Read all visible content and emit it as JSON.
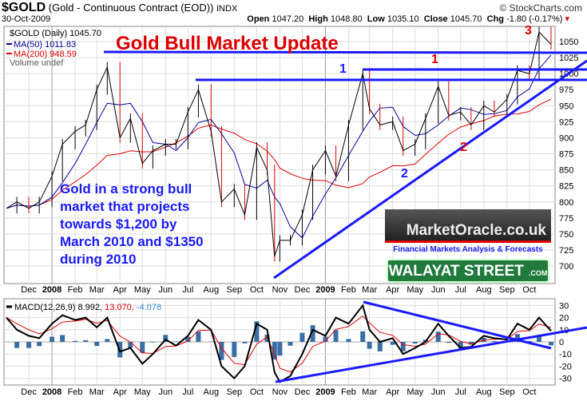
{
  "header": {
    "symbol": "$GOLD",
    "name": "(Gold - Continuous Contract (EOD))",
    "exchange": "INDX",
    "date": "30-Oct-2009",
    "copyright": "© StockCharts.com",
    "open_label": "Open",
    "open": "1047.20",
    "high_label": "High",
    "high": "1048.80",
    "low_label": "Low",
    "low": "1035.10",
    "close_label": "Close",
    "close": "1045.70",
    "chg_label": "Chg",
    "chg": "-1.80 (-0.17%)"
  },
  "legend": {
    "price": "$GOLD (Daily) 1045.70",
    "ma50": "MA(50) 1011.83",
    "ma200": "MA(200) 948.59",
    "volume": "Volume undef",
    "macd_name": "MACD(12,26,9)",
    "macd": "8.992,",
    "signal": "13.070,",
    "hist": "-4.078"
  },
  "annotations": {
    "title": "Gold Bull Market Update",
    "note": "Gold in a strong bull market that projects towards $1,200 by March 2010 and $1350 during 2010",
    "wave_1a": "1",
    "wave_1b": "1",
    "wave_2a": "2",
    "wave_2b": "2",
    "wave_3": "3"
  },
  "logo": {
    "name": "MarketOracle.co.uk",
    "tagline": "Financial Markets Analysis & Forecasts",
    "street": "WALAYAT STREET",
    ".com": ".COM"
  },
  "colors": {
    "price": "#000000",
    "ma50": "#000099",
    "ma200": "#dd0000",
    "trend": "#1a1aff",
    "hist": "#3a6ea5"
  },
  "chart_data": [
    {
      "type": "line",
      "title": "$GOLD (Daily)",
      "ylim": [
        675,
        1075
      ],
      "yticks": [
        700,
        725,
        750,
        775,
        800,
        825,
        850,
        875,
        900,
        925,
        950,
        975,
        1000,
        1025,
        1050
      ],
      "xticks": [
        {
          "d": "2007-12-01",
          "t": "Dec"
        },
        {
          "d": "2008-01-01",
          "t": "2008",
          "bold": true
        },
        {
          "d": "2008-02-01",
          "t": "Feb"
        },
        {
          "d": "2008-03-01",
          "t": "Mar"
        },
        {
          "d": "2008-04-01",
          "t": "Apr"
        },
        {
          "d": "2008-05-01",
          "t": "May"
        },
        {
          "d": "2008-06-01",
          "t": "Jun"
        },
        {
          "d": "2008-07-01",
          "t": "Jul"
        },
        {
          "d": "2008-08-01",
          "t": "Aug"
        },
        {
          "d": "2008-09-01",
          "t": "Sep"
        },
        {
          "d": "2008-10-01",
          "t": "Oct"
        },
        {
          "d": "2008-11-01",
          "t": "Nov"
        },
        {
          "d": "2008-12-01",
          "t": "Dec"
        },
        {
          "d": "2009-01-01",
          "t": "2009",
          "bold": true
        },
        {
          "d": "2009-02-01",
          "t": "Feb"
        },
        {
          "d": "2009-03-01",
          "t": "Mar"
        },
        {
          "d": "2009-04-01",
          "t": "Apr"
        },
        {
          "d": "2009-05-01",
          "t": "May"
        },
        {
          "d": "2009-06-01",
          "t": "Jun"
        },
        {
          "d": "2009-07-01",
          "t": "Jul"
        },
        {
          "d": "2009-08-01",
          "t": "Aug"
        },
        {
          "d": "2009-09-01",
          "t": "Sep"
        },
        {
          "d": "2009-10-01",
          "t": "Oct"
        }
      ],
      "x": [
        "2007-11-01",
        "2007-11-15",
        "2007-12-01",
        "2007-12-15",
        "2008-01-01",
        "2008-01-15",
        "2008-02-01",
        "2008-02-15",
        "2008-03-01",
        "2008-03-15",
        "2008-04-01",
        "2008-04-15",
        "2008-05-01",
        "2008-05-15",
        "2008-06-01",
        "2008-06-15",
        "2008-07-01",
        "2008-07-15",
        "2008-08-01",
        "2008-08-15",
        "2008-09-01",
        "2008-09-15",
        "2008-10-01",
        "2008-10-15",
        "2008-10-25",
        "2008-11-01",
        "2008-11-15",
        "2008-12-01",
        "2008-12-15",
        "2009-01-01",
        "2009-01-15",
        "2009-02-01",
        "2009-02-20",
        "2009-03-01",
        "2009-03-15",
        "2009-04-01",
        "2009-04-15",
        "2009-05-01",
        "2009-05-15",
        "2009-06-01",
        "2009-06-15",
        "2009-07-01",
        "2009-07-15",
        "2009-08-01",
        "2009-08-15",
        "2009-09-01",
        "2009-09-15",
        "2009-10-01",
        "2009-10-14",
        "2009-10-30"
      ],
      "close": [
        790,
        800,
        790,
        800,
        840,
        890,
        910,
        920,
        975,
        1010,
        900,
        930,
        860,
        880,
        890,
        890,
        940,
        975,
        910,
        800,
        820,
        780,
        885,
        850,
        715,
        740,
        740,
        780,
        850,
        880,
        840,
        920,
        1000,
        945,
        920,
        925,
        880,
        890,
        930,
        980,
        935,
        940,
        920,
        950,
        940,
        960,
        1005,
        1000,
        1065,
        1045.7
      ],
      "macd": [
        20,
        10,
        5,
        3,
        15,
        22,
        18,
        20,
        12,
        20,
        -8,
        -5,
        -18,
        -10,
        2,
        -3,
        5,
        18,
        10,
        -20,
        -30,
        -20,
        15,
        10,
        -25,
        -33,
        -28,
        -10,
        10,
        5,
        20,
        15,
        30,
        10,
        0,
        3,
        -10,
        -5,
        0,
        15,
        5,
        -5,
        -4,
        5,
        3,
        2,
        15,
        10,
        20,
        9
      ],
      "macd_ylim": [
        -38,
        36
      ],
      "macd_yticks": [
        -30,
        -20,
        -10,
        0,
        10,
        20,
        30
      ]
    }
  ]
}
